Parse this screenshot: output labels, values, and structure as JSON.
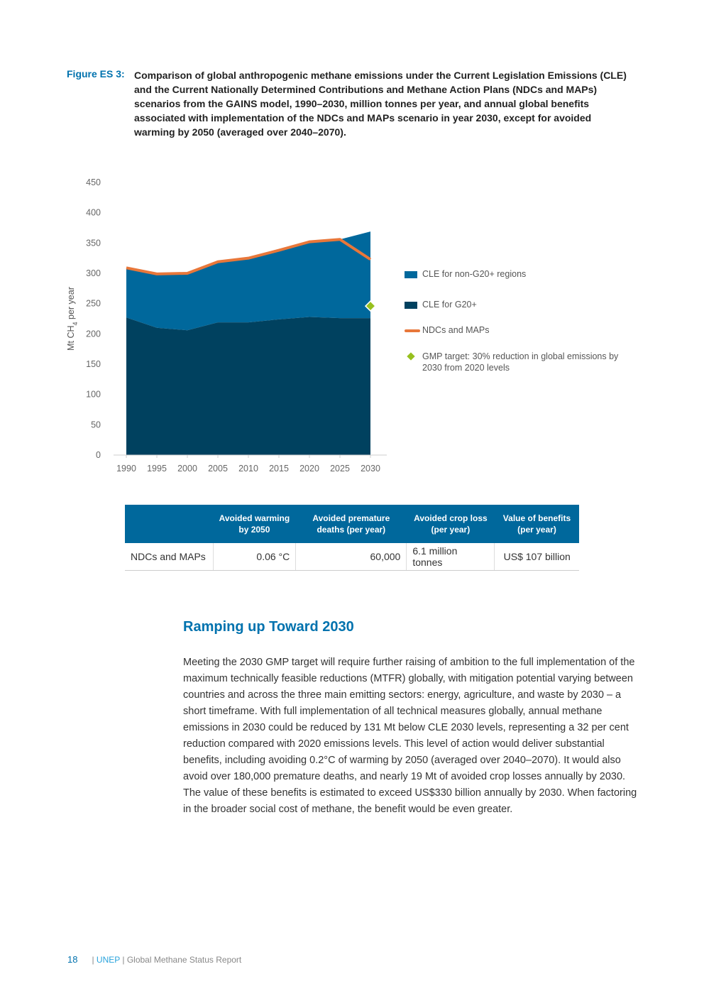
{
  "figure": {
    "label": "Figure ES 3:",
    "caption": "Comparison of global anthropogenic methane emissions under the Current Legislation Emissions (CLE) and the Current Nationally Determined Contributions and Methane Action Plans (NDCs and MAPs) scenarios from the GAINS model, 1990–2030, million tonnes per year, and annual global benefits associated with implementation of the NDCs and MAPs scenario in year 2030, except for avoided warming by 2050 (averaged over 2040–2070)."
  },
  "chart_data": {
    "type": "area",
    "ylabel": "Mt CH4 per year",
    "ylim": [
      0,
      450
    ],
    "yticks": [
      "0",
      "50",
      "100",
      "150",
      "200",
      "250",
      "300",
      "350",
      "400",
      "450"
    ],
    "x": [
      "1990",
      "1995",
      "2000",
      "2005",
      "2010",
      "2015",
      "2020",
      "2025",
      "2030"
    ],
    "grid": false,
    "legend_placement": "right",
    "series": [
      {
        "name": "CLE for G20+",
        "kind": "stacked-area",
        "color": "#00415f",
        "values": [
          227,
          210,
          206,
          219,
          219,
          224,
          228,
          226,
          226
        ]
      },
      {
        "name": "CLE for non-G20+ regions",
        "kind": "stacked-area",
        "color": "#00689c",
        "values": [
          82,
          89,
          94,
          100,
          106,
          114,
          124,
          130,
          143
        ]
      },
      {
        "name": "NDCs and MAPs",
        "kind": "line",
        "color": "#e8773a",
        "values": [
          309,
          299,
          300,
          319,
          325,
          338,
          352,
          356,
          323
        ]
      },
      {
        "name": "GMP target: 30% reduction in global emissions by 2030 from 2020 levels",
        "kind": "marker",
        "color": "#97c01e",
        "x": "2030",
        "value": 246
      }
    ],
    "legend": [
      {
        "label": "CLE for non-G20+ regions",
        "color": "#00689c",
        "shape": "rect"
      },
      {
        "label": "CLE for G20+",
        "color": "#00415f",
        "shape": "rect"
      },
      {
        "label": "NDCs and MAPs",
        "color": "#e8773a",
        "shape": "line"
      },
      {
        "label": "GMP target: 30% reduction in global emissions by 2030 from 2020 levels",
        "color": "#97c01e",
        "shape": "diamond"
      }
    ]
  },
  "table": {
    "headers": [
      "",
      "Avoided warming by 2050",
      "Avoided premature deaths (per year)",
      "Avoided crop loss (per year)",
      "Value of benefits (per year)"
    ],
    "rows": [
      [
        "NDCs and MAPs",
        "0.06 °C",
        "60,000",
        "6.1 million tonnes",
        "US$ 107 billion"
      ]
    ]
  },
  "section": {
    "heading": "Ramping up Toward 2030",
    "body": "Meeting the 2030 GMP target will require further raising of ambition to the full implementation of the maximum technically feasible reductions (MTFR) globally, with mitigation potential varying between countries and across the three main emitting sectors: energy, agriculture, and waste by 2030 – a short timeframe. With full implementation of all technical measures globally, annual methane emissions in 2030 could be reduced by 131 Mt below CLE 2030 levels, representing a 32 per cent reduction compared with 2020 emissions levels. This level of action would deliver substantial benefits, including avoiding 0.2°C of warming by 2050 (averaged over 2040–2070). It would also avoid over 180,000 premature deaths, and nearly 19 Mt of avoided crop losses annually by 2030. The value of these benefits is estimated to exceed US$330 billion annually by 2030. When factoring in the broader social cost of methane, the benefit would be even greater."
  },
  "footer": {
    "page": "18",
    "sep1": "| ",
    "brand": "UNEP",
    "title": " | Global Methane Status Report"
  }
}
